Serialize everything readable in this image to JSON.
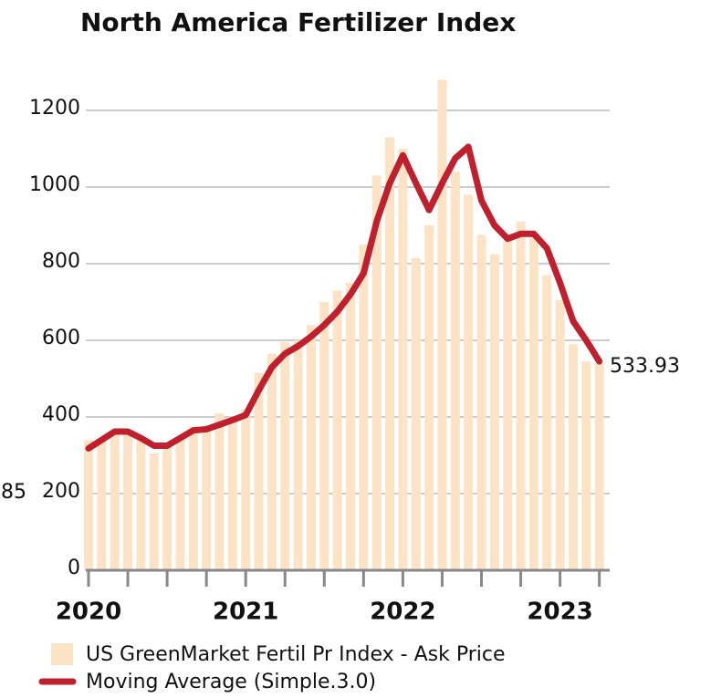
{
  "chart_data": {
    "type": "bar_line",
    "title": "North America Fertilizer Index",
    "categories": [
      "2020",
      null,
      null,
      null,
      null,
      null,
      null,
      null,
      null,
      null,
      null,
      null,
      "2021",
      null,
      null,
      null,
      null,
      null,
      null,
      null,
      null,
      null,
      null,
      null,
      "2022",
      null,
      null,
      null,
      null,
      null,
      null,
      null,
      null,
      null,
      null,
      null,
      "2023",
      null,
      null,
      null
    ],
    "series": [
      {
        "name": "US GreenMarket Fertil Pr Index - Ask Price",
        "color": "#fde3c6",
        "kind": "bar",
        "values": [
          340,
          345,
          355,
          365,
          340,
          305,
          320,
          345,
          375,
          370,
          410,
          400,
          420,
          515,
          565,
          595,
          600,
          640,
          700,
          730,
          750,
          850,
          1030,
          1130,
          1100,
          815,
          900,
          1280,
          1040,
          980,
          875,
          825,
          860,
          910,
          875,
          770,
          705,
          590,
          545,
          540
        ]
      },
      {
        "name": "Moving Average (Simple.3.0)",
        "color": "#c0202e",
        "kind": "line",
        "values": [
          318,
          340,
          362,
          362,
          345,
          325,
          325,
          345,
          365,
          368,
          380,
          392,
          405,
          470,
          530,
          565,
          585,
          610,
          640,
          675,
          720,
          775,
          910,
          1010,
          1083,
          1010,
          940,
          1010,
          1075,
          1105,
          965,
          900,
          865,
          878,
          878,
          840,
          750,
          650,
          600,
          545
        ]
      }
    ],
    "annotations": [
      "533.93",
      "85"
    ],
    "ylim": [
      0,
      1200
    ],
    "yticks": [
      0,
      200,
      400,
      600,
      800,
      1000,
      1200
    ],
    "grid": true
  }
}
